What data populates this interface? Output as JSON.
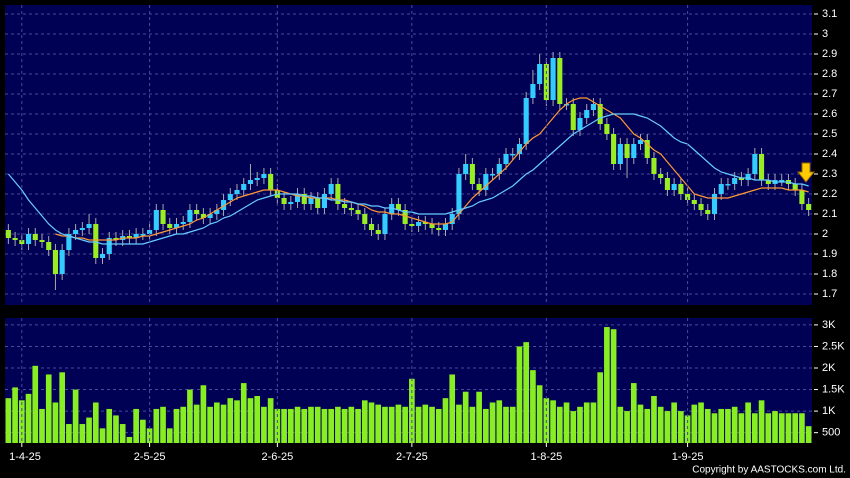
{
  "chart_data": [
    {
      "type": "candlestick",
      "open": [
        2.02,
        1.98,
        1.97,
        1.95,
        2.0,
        1.97,
        1.96,
        1.92,
        1.8,
        1.92,
        2.0,
        2.02,
        2.03,
        2.05,
        1.88,
        1.9,
        1.98,
        1.97,
        1.99,
        1.98,
        2.0,
        2.0,
        2.02,
        2.12,
        2.05,
        2.03,
        2.05,
        2.06,
        2.12,
        2.1,
        2.08,
        2.1,
        2.12,
        2.17,
        2.2,
        2.22,
        2.25,
        2.27,
        2.28,
        2.3,
        2.22,
        2.18,
        2.15,
        2.16,
        2.2,
        2.15,
        2.18,
        2.13,
        2.2,
        2.25,
        2.15,
        2.13,
        2.12,
        2.1,
        2.05,
        2.02,
        2.0,
        2.1,
        2.15,
        2.12,
        2.05,
        2.04,
        2.06,
        2.05,
        2.03,
        2.02,
        2.05,
        2.1,
        2.3,
        2.35,
        2.25,
        2.22,
        2.3,
        2.3,
        2.35,
        2.4,
        2.4,
        2.45,
        2.68,
        2.75,
        2.85,
        2.67,
        2.88,
        2.65,
        2.65,
        2.52,
        2.58,
        2.62,
        2.65,
        2.55,
        2.5,
        2.35,
        2.45,
        2.38,
        2.45,
        2.47,
        2.38,
        2.3,
        2.28,
        2.22,
        2.25,
        2.2,
        2.17,
        2.15,
        2.12,
        2.1,
        2.2,
        2.25,
        2.25,
        2.28,
        2.27,
        2.3,
        2.4,
        2.27,
        2.25,
        2.27,
        2.27,
        2.25,
        2.22,
        2.15
      ],
      "high": [
        2.05,
        2.01,
        2.0,
        2.03,
        2.03,
        2.0,
        1.99,
        1.95,
        1.95,
        2.03,
        2.05,
        2.06,
        2.1,
        2.08,
        1.93,
        2.01,
        2.01,
        2.02,
        2.02,
        2.03,
        2.03,
        2.05,
        2.15,
        2.15,
        2.08,
        2.08,
        2.09,
        2.15,
        2.15,
        2.13,
        2.13,
        2.15,
        2.2,
        2.23,
        2.25,
        2.28,
        2.35,
        2.31,
        2.33,
        2.33,
        2.25,
        2.21,
        2.19,
        2.23,
        2.23,
        2.21,
        2.21,
        2.23,
        2.28,
        2.28,
        2.18,
        2.16,
        2.15,
        2.13,
        2.08,
        2.05,
        2.13,
        2.18,
        2.18,
        2.15,
        2.08,
        2.09,
        2.09,
        2.08,
        2.06,
        2.08,
        2.13,
        2.33,
        2.4,
        2.38,
        2.28,
        2.33,
        2.33,
        2.38,
        2.43,
        2.43,
        2.48,
        2.71,
        2.82,
        2.9,
        2.88,
        2.91,
        2.91,
        2.68,
        2.68,
        2.61,
        2.65,
        2.68,
        2.68,
        2.58,
        2.53,
        2.48,
        2.48,
        2.48,
        2.5,
        2.5,
        2.41,
        2.33,
        2.31,
        2.28,
        2.28,
        2.23,
        2.2,
        2.18,
        2.15,
        2.23,
        2.28,
        2.28,
        2.31,
        2.31,
        2.33,
        2.43,
        2.43,
        2.3,
        2.3,
        2.3,
        2.3,
        2.28,
        2.25,
        2.18
      ],
      "low": [
        1.95,
        1.94,
        1.92,
        1.92,
        1.94,
        1.93,
        1.89,
        1.72,
        1.77,
        1.89,
        1.97,
        1.99,
        2.0,
        1.85,
        1.85,
        1.87,
        1.94,
        1.94,
        1.95,
        1.95,
        1.97,
        1.97,
        1.99,
        2.02,
        2.0,
        2.0,
        2.02,
        2.03,
        2.07,
        2.05,
        2.05,
        2.07,
        2.09,
        2.14,
        2.17,
        2.19,
        2.22,
        2.24,
        2.25,
        2.19,
        2.15,
        2.12,
        2.12,
        2.13,
        2.12,
        2.12,
        2.1,
        2.1,
        2.17,
        2.12,
        2.1,
        2.09,
        2.07,
        2.02,
        1.99,
        1.97,
        1.97,
        2.07,
        2.09,
        2.02,
        2.01,
        2.01,
        2.02,
        2.0,
        1.99,
        1.99,
        2.02,
        2.07,
        2.27,
        2.22,
        2.19,
        2.19,
        2.27,
        2.27,
        2.32,
        2.37,
        2.37,
        2.42,
        2.65,
        2.72,
        2.64,
        2.64,
        2.62,
        2.62,
        2.49,
        2.49,
        2.55,
        2.59,
        2.52,
        2.47,
        2.32,
        2.32,
        2.28,
        2.35,
        2.42,
        2.35,
        2.27,
        2.25,
        2.19,
        2.19,
        2.17,
        2.14,
        2.12,
        2.09,
        2.07,
        2.07,
        2.17,
        2.22,
        2.22,
        2.24,
        2.24,
        2.27,
        2.24,
        2.22,
        2.22,
        2.24,
        2.22,
        2.19,
        2.12,
        2.09
      ],
      "close": [
        1.98,
        1.97,
        1.95,
        2.0,
        1.97,
        1.96,
        1.92,
        1.8,
        1.92,
        2.0,
        2.02,
        2.03,
        2.05,
        1.88,
        1.9,
        1.98,
        1.97,
        1.99,
        1.98,
        2.0,
        2.0,
        2.02,
        2.12,
        2.05,
        2.03,
        2.05,
        2.06,
        2.12,
        2.1,
        2.08,
        2.1,
        2.12,
        2.17,
        2.2,
        2.22,
        2.25,
        2.27,
        2.28,
        2.3,
        2.22,
        2.18,
        2.15,
        2.16,
        2.2,
        2.15,
        2.18,
        2.13,
        2.2,
        2.25,
        2.15,
        2.13,
        2.12,
        2.1,
        2.05,
        2.02,
        2.0,
        2.1,
        2.15,
        2.12,
        2.05,
        2.04,
        2.06,
        2.05,
        2.03,
        2.02,
        2.05,
        2.1,
        2.3,
        2.35,
        2.25,
        2.22,
        2.3,
        2.3,
        2.35,
        2.4,
        2.4,
        2.45,
        2.68,
        2.75,
        2.85,
        2.67,
        2.88,
        2.65,
        2.65,
        2.52,
        2.58,
        2.62,
        2.65,
        2.55,
        2.5,
        2.35,
        2.45,
        2.38,
        2.45,
        2.47,
        2.38,
        2.3,
        2.28,
        2.22,
        2.25,
        2.2,
        2.17,
        2.15,
        2.12,
        2.1,
        2.2,
        2.25,
        2.25,
        2.28,
        2.27,
        2.3,
        2.4,
        2.27,
        2.25,
        2.27,
        2.27,
        2.25,
        2.22,
        2.15,
        2.12
      ],
      "up_color": "#33ccff",
      "down_color": "#99ee22",
      "series": [
        {
          "color": "#ff9933",
          "values": [
            null,
            null,
            null,
            null,
            null,
            null,
            null,
            2.0,
            1.99,
            1.99,
            1.98,
            1.98,
            1.97,
            1.97,
            1.97,
            1.97,
            1.97,
            1.98,
            1.98,
            1.98,
            1.99,
            1.99,
            2.0,
            2.01,
            2.02,
            2.03,
            2.04,
            2.05,
            2.07,
            2.08,
            2.1,
            2.12,
            2.14,
            2.16,
            2.18,
            2.19,
            2.2,
            2.21,
            2.22,
            2.22,
            2.22,
            2.21,
            2.2,
            2.19,
            2.19,
            2.18,
            2.18,
            2.18,
            2.18,
            2.17,
            2.17,
            2.16,
            2.15,
            2.14,
            2.12,
            2.11,
            2.11,
            2.1,
            2.1,
            2.09,
            2.08,
            2.07,
            2.06,
            2.05,
            2.05,
            2.05,
            2.06,
            2.1,
            2.14,
            2.18,
            2.21,
            2.24,
            2.27,
            2.3,
            2.33,
            2.37,
            2.41,
            2.45,
            2.48,
            2.5,
            2.54,
            2.58,
            2.62,
            2.65,
            2.67,
            2.68,
            2.68,
            2.66,
            2.64,
            2.62,
            2.6,
            2.58,
            2.54,
            2.5,
            2.48,
            2.45,
            2.42,
            2.4,
            2.36,
            2.32,
            2.28,
            2.24,
            2.2,
            2.19,
            2.18,
            2.18,
            2.18,
            2.18,
            2.19,
            2.2,
            2.21,
            2.22,
            2.23,
            2.23,
            2.23,
            2.23,
            2.22,
            2.22,
            2.22,
            2.21
          ]
        },
        {
          "color": "#66ccff",
          "values": [
            2.3,
            2.26,
            2.22,
            2.17,
            2.13,
            2.09,
            2.05,
            2.02,
            2.0,
            1.99,
            1.98,
            1.97,
            1.96,
            1.96,
            1.95,
            1.95,
            1.95,
            1.95,
            1.95,
            1.95,
            1.95,
            1.96,
            1.97,
            1.98,
            1.99,
            2.0,
            2.0,
            2.01,
            2.02,
            2.03,
            2.05,
            2.06,
            2.08,
            2.09,
            2.11,
            2.13,
            2.15,
            2.17,
            2.18,
            2.19,
            2.2,
            2.2,
            2.2,
            2.2,
            2.19,
            2.19,
            2.18,
            2.18,
            2.17,
            2.17,
            2.16,
            2.16,
            2.15,
            2.15,
            2.14,
            2.14,
            2.13,
            2.13,
            2.12,
            2.11,
            2.11,
            2.1,
            2.1,
            2.1,
            2.1,
            2.1,
            2.11,
            2.12,
            2.13,
            2.14,
            2.16,
            2.17,
            2.18,
            2.2,
            2.22,
            2.24,
            2.27,
            2.3,
            2.32,
            2.35,
            2.38,
            2.41,
            2.44,
            2.47,
            2.5,
            2.52,
            2.54,
            2.56,
            2.58,
            2.59,
            2.6,
            2.6,
            2.6,
            2.6,
            2.59,
            2.58,
            2.56,
            2.54,
            2.51,
            2.48,
            2.46,
            2.45,
            2.42,
            2.39,
            2.36,
            2.33,
            2.31,
            2.3,
            2.29,
            2.28,
            2.28,
            2.27,
            2.27,
            2.27,
            2.26,
            2.26,
            2.26,
            2.25,
            2.25,
            2.24
          ]
        }
      ],
      "ylim": [
        1.645,
        3.145
      ],
      "yticks": [
        1.7,
        1.8,
        1.9,
        2,
        2.1,
        2.2,
        2.3,
        2.4,
        2.5,
        2.6,
        2.7,
        2.8,
        2.9,
        3,
        3.1
      ],
      "grid": true
    },
    {
      "type": "bar",
      "categories": [
        null,
        null,
        "1-4-25",
        null,
        null,
        null,
        null,
        null,
        null,
        null,
        null,
        null,
        null,
        null,
        null,
        null,
        null,
        null,
        null,
        null,
        null,
        "2-5-25",
        null,
        null,
        null,
        null,
        null,
        null,
        null,
        null,
        null,
        null,
        null,
        null,
        null,
        null,
        null,
        null,
        null,
        null,
        "2-6-25",
        null,
        null,
        null,
        null,
        null,
        null,
        null,
        null,
        null,
        null,
        null,
        null,
        null,
        null,
        null,
        null,
        null,
        null,
        null,
        "2-7-25",
        null,
        null,
        null,
        null,
        null,
        null,
        null,
        null,
        null,
        null,
        null,
        null,
        null,
        null,
        null,
        null,
        null,
        null,
        null,
        "1-8-25",
        null,
        null,
        null,
        null,
        null,
        null,
        null,
        null,
        null,
        null,
        null,
        null,
        null,
        null,
        null,
        null,
        null,
        null,
        null,
        null,
        "1-9-25",
        null,
        null,
        null,
        null,
        null,
        null,
        null,
        null,
        null,
        null,
        null,
        null,
        null,
        null,
        null,
        null,
        null,
        null
      ],
      "values": [
        1300,
        1550,
        1250,
        1400,
        2050,
        1050,
        1850,
        1200,
        1900,
        700,
        1500,
        700,
        850,
        1200,
        600,
        1050,
        900,
        700,
        400,
        1050,
        800,
        600,
        1050,
        1100,
        600,
        1050,
        1100,
        1500,
        1150,
        1600,
        1100,
        1200,
        1150,
        1300,
        1250,
        1650,
        1300,
        1350,
        1100,
        1300,
        1050,
        1050,
        1050,
        1100,
        1050,
        1100,
        1100,
        1050,
        1050,
        1100,
        1050,
        1100,
        1050,
        1250,
        1200,
        1150,
        1100,
        1100,
        1150,
        1100,
        1750,
        1100,
        1150,
        1100,
        1050,
        1300,
        1850,
        1150,
        1450,
        1100,
        1450,
        1050,
        1200,
        1250,
        1100,
        1100,
        2500,
        2600,
        1950,
        1600,
        1300,
        1250,
        1100,
        1200,
        1000,
        1100,
        1200,
        1200,
        1900,
        2950,
        2900,
        1100,
        1000,
        1650,
        1150,
        1050,
        1350,
        1100,
        1000,
        1200,
        1000,
        900,
        1150,
        1200,
        1050,
        950,
        1050,
        1050,
        1100,
        950,
        1200,
        950,
        1250,
        950,
        1000,
        950,
        950,
        950,
        950,
        650
      ],
      "color": "#88ee22",
      "ylim": [
        260,
        3160
      ],
      "yticks": [
        500,
        {
          "value": 1000,
          "label": "1K"
        },
        {
          "value": 1500,
          "label": "1.5K"
        },
        {
          "value": 2000,
          "label": "2K"
        },
        {
          "value": 2500,
          "label": "2.5K"
        },
        {
          "value": 3000,
          "label": "3K"
        }
      ],
      "grid": true,
      "copyright": "Copyright by AASTOCKS.com Ltd."
    }
  ]
}
